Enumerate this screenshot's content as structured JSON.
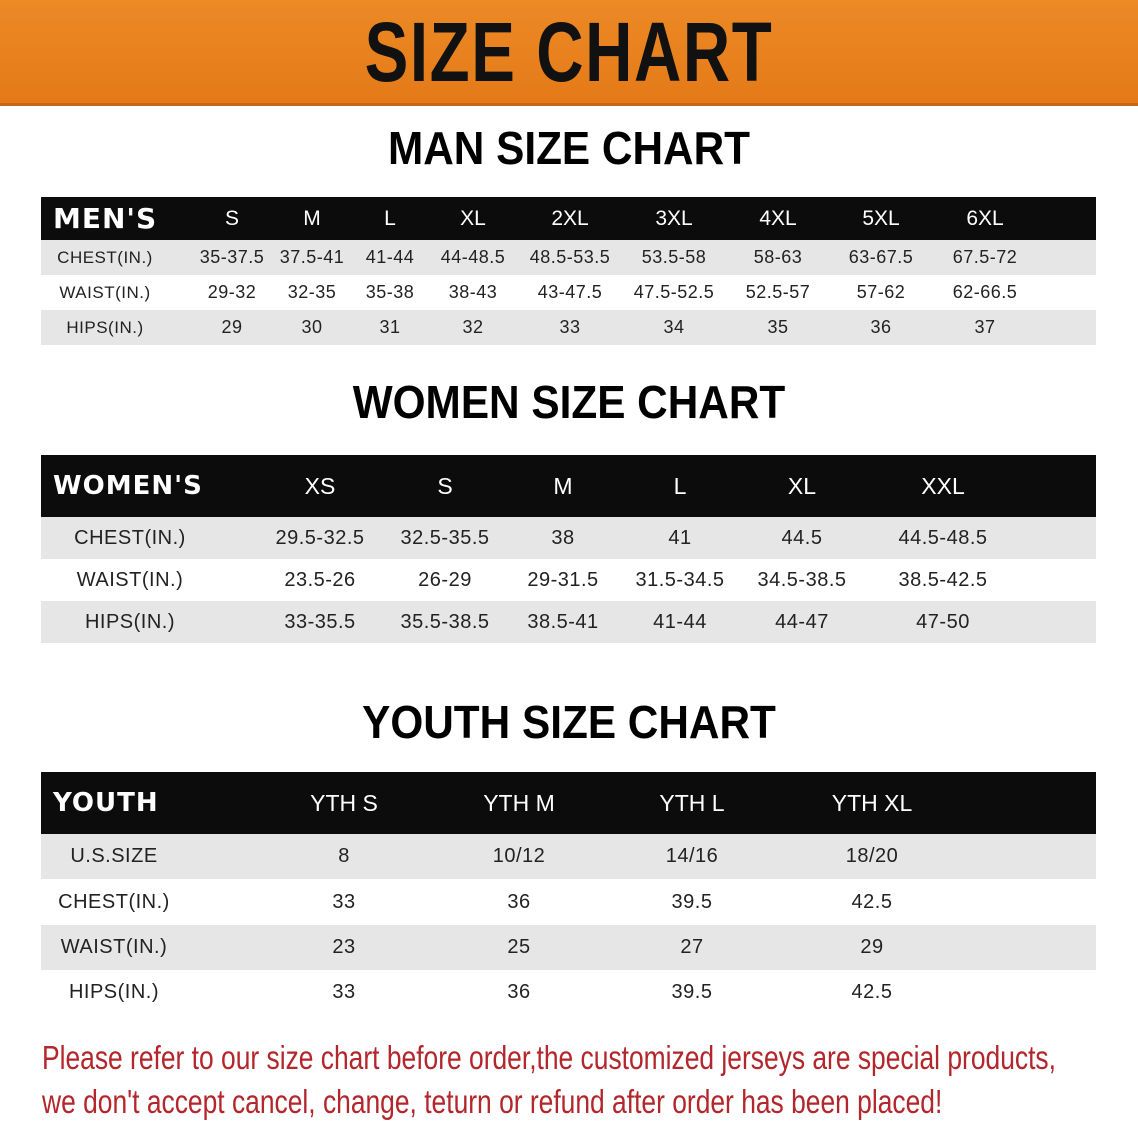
{
  "title": "SIZE CHART",
  "colors": {
    "banner": "#e8801f",
    "header_bg": "#0c0c0c",
    "row_alt": "#e6e6e6",
    "notice": "#b3262c"
  },
  "men": {
    "title": "MAN SIZE CHART",
    "header": [
      "MEN'S",
      "S",
      "M",
      "L",
      "XL",
      "2XL",
      "3XL",
      "4XL",
      "5XL",
      "6XL"
    ],
    "rows": [
      [
        "CHEST(IN.)",
        "35-37.5",
        "37.5-41",
        "41-44",
        "44-48.5",
        "48.5-53.5",
        "53.5-58",
        "58-63",
        "63-67.5",
        "67.5-72"
      ],
      [
        "WAIST(IN.)",
        "29-32",
        "32-35",
        "35-38",
        "38-43",
        "43-47.5",
        "47.5-52.5",
        "52.5-57",
        "57-62",
        "62-66.5"
      ],
      [
        "HIPS(IN.)",
        "29",
        "30",
        "31",
        "32",
        "33",
        "34",
        "35",
        "36",
        "37"
      ]
    ]
  },
  "women": {
    "title": "WOMEN SIZE CHART",
    "header": [
      "WOMEN'S",
      "XS",
      "S",
      "M",
      "L",
      "XL",
      "XXL"
    ],
    "rows": [
      [
        "CHEST(IN.)",
        "29.5-32.5",
        "32.5-35.5",
        "38",
        "41",
        "44.5",
        "44.5-48.5"
      ],
      [
        "WAIST(IN.)",
        "23.5-26",
        "26-29",
        "29-31.5",
        "31.5-34.5",
        "34.5-38.5",
        "38.5-42.5"
      ],
      [
        "HIPS(IN.)",
        "33-35.5",
        "35.5-38.5",
        "38.5-41",
        "41-44",
        "44-47",
        "47-50"
      ]
    ]
  },
  "youth": {
    "title": "YOUTH SIZE CHART",
    "header": [
      "YOUTH",
      "YTH S",
      "YTH M",
      "YTH L",
      "YTH XL"
    ],
    "rows": [
      [
        "U.S.SIZE",
        "8",
        "10/12",
        "14/16",
        "18/20"
      ],
      [
        "CHEST(IN.)",
        "33",
        "36",
        "39.5",
        "42.5"
      ],
      [
        "WAIST(IN.)",
        "23",
        "25",
        "27",
        "29"
      ],
      [
        "HIPS(IN.)",
        "33",
        "36",
        "39.5",
        "42.5"
      ]
    ]
  },
  "notice": {
    "line1": "Please refer to our size chart before order,the customized jerseys are special products,",
    "line2": "we don't accept cancel, change, teturn or refund after order has been placed!"
  }
}
